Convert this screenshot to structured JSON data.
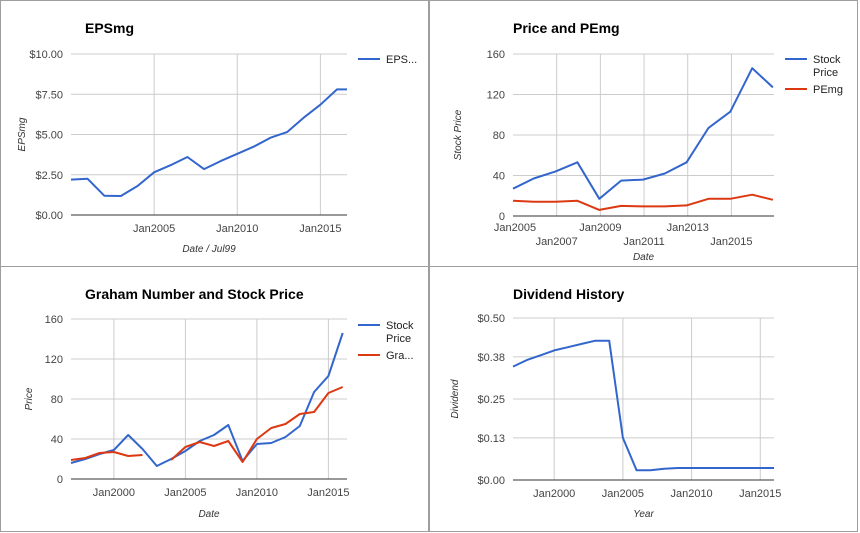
{
  "colors": {
    "blue": "#3366cc",
    "red": "#dc3912",
    "grid": "#cccccc"
  },
  "chart_data": [
    {
      "type": "line",
      "title": "EPSmg",
      "xlabel": "Date / Jul99",
      "ylabel": "EPSmg",
      "y_ticks": [
        "$0.00",
        "$2.50",
        "$5.00",
        "$7.50",
        "$10.00"
      ],
      "x_ticks": [
        "Jan2005",
        "Jan2010",
        "Jan2015"
      ],
      "xlim": [
        2000.0,
        2016.6
      ],
      "ylim": [
        0,
        10
      ],
      "legend_position": "right",
      "series": [
        {
          "name": "EPS...",
          "color": "#3366cc",
          "x": [
            2000.0,
            2001.0,
            2002.0,
            2003.0,
            2004.0,
            2005.0,
            2006.0,
            2007.0,
            2008.0,
            2009.0,
            2010.0,
            2011.0,
            2012.0,
            2013.0,
            2014.0,
            2015.0,
            2016.0,
            2016.6
          ],
          "y": [
            2.2,
            2.25,
            1.2,
            1.18,
            1.8,
            2.65,
            3.1,
            3.6,
            2.85,
            3.35,
            3.8,
            4.25,
            4.8,
            5.15,
            6.05,
            6.85,
            7.8,
            7.8
          ]
        }
      ]
    },
    {
      "type": "line",
      "title": "Price and PEmg",
      "xlabel": "Date",
      "ylabel": "Stock Price",
      "y_ticks": [
        "0",
        "40",
        "80",
        "120",
        "160"
      ],
      "x_ticks": [
        "Jan2005",
        "Jan2007",
        "Jan2009",
        "Jan2011",
        "Jan2013",
        "Jan2015"
      ],
      "xlim": [
        2005.0,
        2016.95
      ],
      "ylim": [
        0,
        160
      ],
      "legend_position": "right",
      "series": [
        {
          "name": "Stock Price",
          "color": "#3366cc",
          "x": [
            2005.0,
            2005.95,
            2006.95,
            2007.95,
            2008.95,
            2009.95,
            2010.95,
            2011.95,
            2012.95,
            2013.95,
            2014.95,
            2015.95,
            2016.9
          ],
          "y": [
            27,
            37,
            44,
            53,
            17,
            35,
            36,
            42,
            53,
            87,
            103,
            146,
            127
          ]
        },
        {
          "name": "PEmg",
          "color": "#dc3912",
          "x": [
            2005.0,
            2005.95,
            2006.95,
            2007.95,
            2008.95,
            2009.95,
            2010.95,
            2011.95,
            2012.95,
            2013.95,
            2014.95,
            2015.95,
            2016.9
          ],
          "y": [
            15,
            14,
            14,
            15,
            6,
            10,
            9.5,
            9.5,
            10.5,
            17,
            17,
            21,
            16
          ]
        }
      ]
    },
    {
      "type": "line",
      "title": "Graham Number and Stock Price",
      "xlabel": "Date",
      "ylabel": "Price",
      "y_ticks": [
        "0",
        "40",
        "80",
        "120",
        "160"
      ],
      "x_ticks": [
        "Jan2000",
        "Jan2005",
        "Jan2010",
        "Jan2015"
      ],
      "xlim": [
        1997.0,
        2016.3
      ],
      "ylim": [
        0,
        160
      ],
      "legend_position": "right",
      "series": [
        {
          "name": "Stock Price",
          "color": "#3366cc",
          "x": [
            1997.0,
            1998.0,
            1999.0,
            2000.0,
            2001.0,
            2002.0,
            2003.0,
            2004.0,
            2005.0,
            2006.0,
            2007.0,
            2008.0,
            2009.0,
            2010.0,
            2011.0,
            2012.0,
            2013.0,
            2014.0,
            2015.0,
            2016.0
          ],
          "y": [
            16,
            20,
            25,
            29,
            44,
            30,
            13,
            20,
            28,
            38,
            44,
            54,
            18,
            35,
            36,
            42,
            53,
            87,
            103,
            146
          ]
        },
        {
          "name": "Gra...",
          "color": "#dc3912",
          "x": [
            1997.0,
            1998.0,
            1999.0,
            2000.0,
            2001.0,
            2002.0,
            null,
            2004.0,
            2005.0,
            2006.0,
            2007.0,
            2008.0,
            2009.0,
            2010.0,
            2011.0,
            2012.0,
            2013.0,
            2014.0,
            2015.0,
            2016.0
          ],
          "y": [
            19,
            21,
            26,
            27,
            23,
            24,
            null,
            19,
            32,
            37,
            33,
            38,
            17,
            40,
            51,
            55,
            65,
            67,
            86,
            92
          ]
        }
      ]
    },
    {
      "type": "line",
      "title": "Dividend History",
      "xlabel": "Year",
      "ylabel": "Dividend",
      "y_ticks": [
        "$0.00",
        "$0.13",
        "$0.25",
        "$0.38",
        "$0.50"
      ],
      "x_ticks": [
        "Jan2000",
        "Jan2005",
        "Jan2010",
        "Jan2015"
      ],
      "xlim": [
        1997.0,
        2016.0
      ],
      "ylim": [
        0,
        0.5
      ],
      "legend_position": "none",
      "series": [
        {
          "color": "#3366cc",
          "x": [
            1997.0,
            1998.0,
            1999.0,
            2000.0,
            2001.0,
            2002.0,
            2003.0,
            2004.0,
            2005.0,
            2006.0,
            2007.0,
            2008.0,
            2009.0,
            2010.0,
            2011.0,
            2012.0,
            2013.0,
            2014.0,
            2015.0,
            2016.0
          ],
          "y": [
            0.35,
            0.37,
            0.385,
            0.4,
            0.41,
            0.42,
            0.43,
            0.43,
            0.13,
            0.03,
            0.03,
            0.035,
            0.037,
            0.037,
            0.037,
            0.037,
            0.037,
            0.037,
            0.037,
            0.037
          ]
        }
      ]
    }
  ]
}
